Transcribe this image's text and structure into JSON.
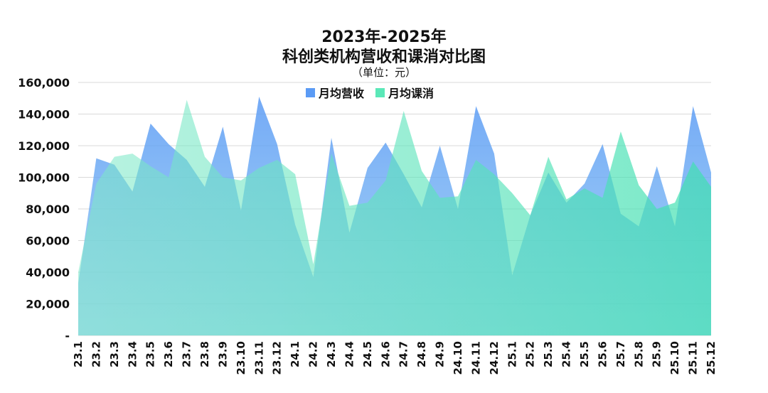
{
  "chart_data": {
    "type": "area",
    "title": "2023年-2025年",
    "subtitle": "科创类机构营收和课消对比图",
    "unit": "（单位：元）",
    "categories": [
      "23.1",
      "23.2",
      "23.3",
      "23.4",
      "23.5",
      "23.6",
      "23.7",
      "23.8",
      "23.9",
      "23.10",
      "23.11",
      "23.12",
      "24.1",
      "24.2",
      "24.3",
      "24.4",
      "24.5",
      "24.6",
      "24.7",
      "24.8",
      "24.9",
      "24.10",
      "24.11",
      "24.12",
      "25.1",
      "25.2",
      "25.3",
      "25.4",
      "25.5",
      "25.6",
      "25.7",
      "25.8",
      "25.9",
      "25.10",
      "25.11",
      "25.12"
    ],
    "ylim": [
      0,
      160000
    ],
    "yticks": [
      0,
      20000,
      40000,
      60000,
      80000,
      100000,
      120000,
      140000,
      160000
    ],
    "ytick_labels": [
      "-",
      "20,000",
      "40,000",
      "60,000",
      "80,000",
      "100,000",
      "120,000",
      "140,000",
      "160,000"
    ],
    "grid": true,
    "legend_position": "top-center",
    "series": [
      {
        "name": "月均营收",
        "color": "#5B9BF5",
        "values": [
          33000,
          112000,
          108000,
          91000,
          134000,
          121000,
          111000,
          94000,
          132000,
          79000,
          151000,
          121000,
          70000,
          37000,
          125000,
          65000,
          106000,
          122000,
          102000,
          81000,
          120000,
          80000,
          145000,
          115000,
          38000,
          76000,
          103000,
          84000,
          96000,
          121000,
          77000,
          69000,
          107000,
          69000,
          145000,
          103000
        ]
      },
      {
        "name": "月均课消",
        "color": "#5BE8B8",
        "values": [
          40000,
          96000,
          113000,
          115000,
          107000,
          100000,
          149000,
          113000,
          100000,
          98000,
          106000,
          111000,
          102000,
          45000,
          115000,
          82000,
          84000,
          98000,
          142000,
          104000,
          87000,
          88000,
          111000,
          102000,
          90000,
          76000,
          113000,
          86000,
          93000,
          87000,
          129000,
          95000,
          80000,
          84000,
          110000,
          94000
        ]
      }
    ]
  }
}
